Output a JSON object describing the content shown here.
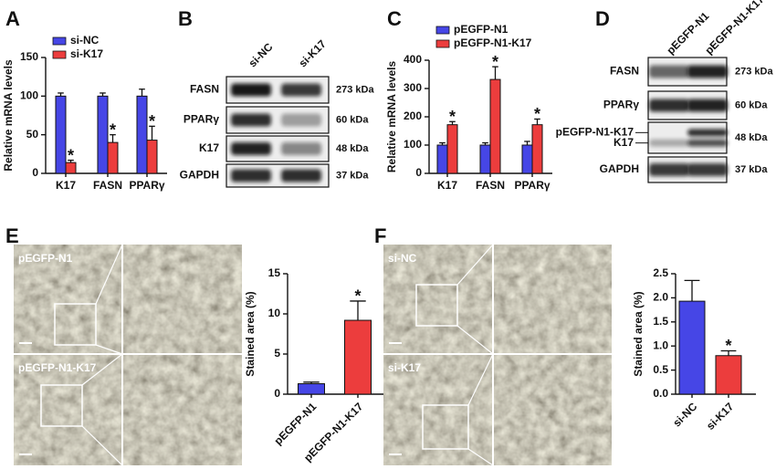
{
  "chart_data": [
    {
      "type": "bar",
      "label": "A",
      "ylabel": "Relative mRNA levels",
      "categories": [
        "K17",
        "FASN",
        "PPARγ"
      ],
      "series": [
        {
          "name": "si-NC",
          "color": "#4646e6",
          "values": [
            100,
            100,
            100
          ],
          "errors": [
            4,
            4,
            9
          ]
        },
        {
          "name": "si-K17",
          "color": "#ec3d3d",
          "values": [
            14,
            40,
            43
          ],
          "errors": [
            3,
            10,
            18
          ]
        }
      ],
      "ylim": [
        0,
        150
      ],
      "yticks": [
        0,
        50,
        100,
        150
      ],
      "annotations": [
        {
          "text": "*",
          "series": "si-K17",
          "at": "K17"
        },
        {
          "text": "*",
          "series": "si-K17",
          "at": "FASN"
        },
        {
          "text": "*",
          "series": "si-K17",
          "at": "PPARγ"
        }
      ]
    },
    {
      "type": "bar",
      "label": "C",
      "ylabel": "Relative mRNA levels",
      "categories": [
        "K17",
        "FASN",
        "PPARγ"
      ],
      "series": [
        {
          "name": "pEGFP-N1",
          "color": "#4646e6",
          "values": [
            100,
            100,
            100
          ],
          "errors": [
            8,
            8,
            13
          ]
        },
        {
          "name": "pEGFP-N1-K17",
          "color": "#ec3d3d",
          "values": [
            172,
            332,
            172
          ],
          "errors": [
            11,
            45,
            20
          ]
        }
      ],
      "ylim": [
        0,
        400
      ],
      "yticks": [
        0,
        100,
        200,
        300,
        400
      ],
      "annotations": [
        {
          "text": "*",
          "series": "pEGFP-N1-K17",
          "at": "K17"
        },
        {
          "text": "*",
          "series": "pEGFP-N1-K17",
          "at": "FASN"
        },
        {
          "text": "*",
          "series": "pEGFP-N1-K17",
          "at": "PPARγ"
        }
      ]
    },
    {
      "type": "bar",
      "label": "E",
      "ylabel": "Stained area (%)",
      "categories": [
        "pEGFP-N1",
        "pEGFP-N1-K17"
      ],
      "values": [
        1.3,
        9.2
      ],
      "errors": [
        0.2,
        2.4
      ],
      "colors": [
        "#4646e6",
        "#ec3d3d"
      ],
      "ylim": [
        0,
        15
      ],
      "yticks": [
        0,
        5,
        10,
        15
      ],
      "annotations": [
        {
          "text": "*",
          "at": "pEGFP-N1-K17"
        }
      ]
    },
    {
      "type": "bar",
      "label": "F",
      "ylabel": "Stained area (%)",
      "categories": [
        "si-NC",
        "si-K17"
      ],
      "values": [
        1.93,
        0.8
      ],
      "errors": [
        0.43,
        0.1
      ],
      "colors": [
        "#4646e6",
        "#ec3d3d"
      ],
      "ylim": [
        0,
        2.5
      ],
      "yticks": [
        {
          "value": 0,
          "label": "0.0"
        },
        0.5,
        {
          "value": 1,
          "label": "1.0"
        },
        1.5,
        {
          "value": 2,
          "label": "2.0"
        },
        2.5
      ],
      "annotations": [
        {
          "text": "*",
          "at": "si-K17"
        }
      ]
    }
  ],
  "blots": [
    {
      "label": "B",
      "lanes": [
        "si-NC",
        "si-K17"
      ],
      "rows": [
        {
          "proteins": [
            "FASN"
          ],
          "size": "273 kDa"
        },
        {
          "proteins": [
            "PPARγ"
          ],
          "size": "60 kDa"
        },
        {
          "proteins": [
            "K17"
          ],
          "size": "48 kDa"
        },
        {
          "proteins": [
            "GAPDH"
          ],
          "size": "37 kDa"
        }
      ]
    },
    {
      "label": "D",
      "lanes": [
        "pEGFP-N1",
        "pEGFP-N1-K17"
      ],
      "rows": [
        {
          "proteins": [
            "FASN"
          ],
          "size": "273 kDa"
        },
        {
          "proteins": [
            "PPARγ"
          ],
          "size": "60 kDa"
        },
        {
          "proteins": [
            "pEGFP-N1-K17",
            "K17"
          ],
          "size": "48 kDa"
        },
        {
          "proteins": [
            "GAPDH"
          ],
          "size": "37 kDa"
        }
      ]
    }
  ],
  "micrographs": [
    {
      "labels": [
        "pEGFP-N1",
        "pEGFP-N1-K17"
      ]
    },
    {
      "labels": [
        "si-NC",
        "si-K17"
      ]
    }
  ]
}
